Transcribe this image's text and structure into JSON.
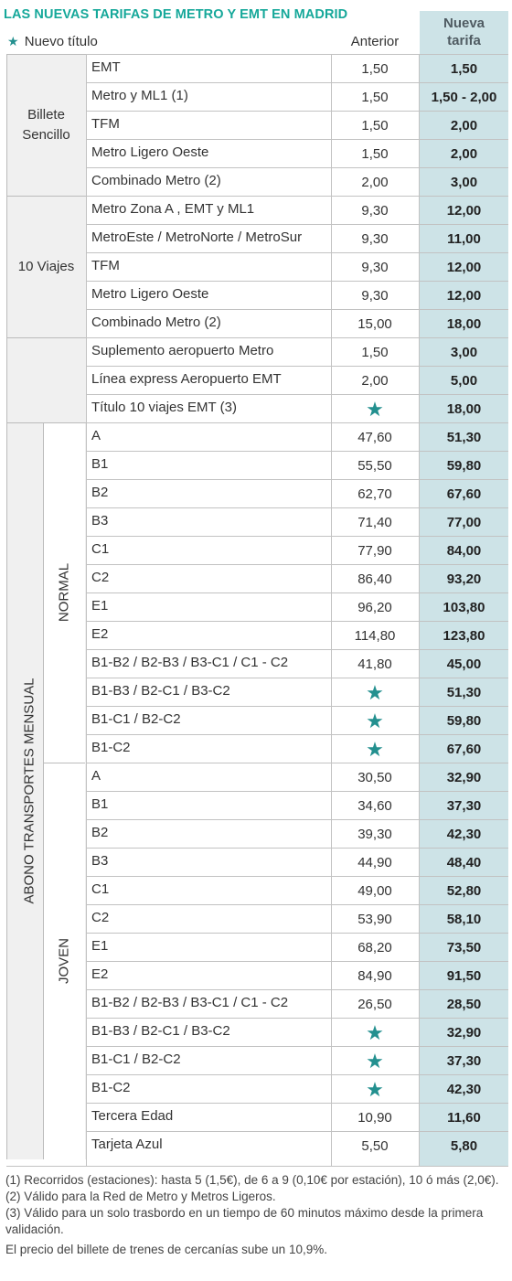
{
  "title": "LAS NUEVAS TARIFAS DE METRO Y EMT EN MADRID",
  "legend": {
    "symbol": "★",
    "label": "Nuevo título"
  },
  "headers": {
    "old": "Anterior",
    "new_line1": "Nueva",
    "new_line2": "tarifa"
  },
  "star_color": "#23908f",
  "title_color": "#16a89a",
  "highlight_color": "#cde3e7",
  "groups": [
    {
      "label_lines": [
        "Billete",
        "Sencillo"
      ],
      "rows": [
        {
          "name": "EMT",
          "old": "1,50",
          "new": "1,50"
        },
        {
          "name": "Metro  y ML1 (1)",
          "old": "1,50",
          "new": "1,50 - 2,00"
        },
        {
          "name": "TFM",
          "old": "1,50",
          "new": "2,00"
        },
        {
          "name": "Metro Ligero Oeste",
          "old": "1,50",
          "new": "2,00"
        },
        {
          "name": "Combinado Metro (2)",
          "old": "2,00",
          "new": "3,00"
        }
      ]
    },
    {
      "label_lines": [
        "10 Viajes"
      ],
      "rows": [
        {
          "name": "Metro Zona A , EMT y ML1",
          "old": "9,30",
          "new": "12,00"
        },
        {
          "name": "MetroEste / MetroNorte / MetroSur",
          "old": "9,30",
          "new": "11,00"
        },
        {
          "name": "TFM",
          "old": "9,30",
          "new": "12,00"
        },
        {
          "name": "Metro Ligero Oeste",
          "old": "9,30",
          "new": "12,00"
        },
        {
          "name": "Combinado Metro (2)",
          "old": "15,00",
          "new": "18,00"
        }
      ]
    },
    {
      "label_lines": [],
      "rows": [
        {
          "name": "Suplemento aeropuerto Metro",
          "old": "1,50",
          "new": "3,00"
        },
        {
          "name": "Línea express Aeropuerto EMT",
          "old": "2,00",
          "new": "5,00"
        },
        {
          "name": "Título 10 viajes EMT (3)",
          "old": "★",
          "new": "18,00"
        }
      ]
    },
    {
      "label_vertical": "ABONO TRANSPORTES MENSUAL",
      "subgroups": [
        {
          "label": "NORMAL",
          "rows": [
            {
              "name": "A",
              "old": "47,60",
              "new": "51,30"
            },
            {
              "name": "B1",
              "old": "55,50",
              "new": "59,80"
            },
            {
              "name": "B2",
              "old": "62,70",
              "new": "67,60"
            },
            {
              "name": "B3",
              "old": "71,40",
              "new": "77,00"
            },
            {
              "name": "C1",
              "old": "77,90",
              "new": "84,00"
            },
            {
              "name": "C2",
              "old": "86,40",
              "new": "93,20"
            },
            {
              "name": "E1",
              "old": "96,20",
              "new": "103,80"
            },
            {
              "name": "E2",
              "old": "114,80",
              "new": "123,80"
            },
            {
              "name": "B1-B2 / B2-B3 / B3-C1 / C1 - C2",
              "old": "41,80",
              "new": "45,00"
            },
            {
              "name": "B1-B3 / B2-C1 / B3-C2",
              "old": "★",
              "new": "51,30"
            },
            {
              "name": "B1-C1 / B2-C2",
              "old": "★",
              "new": "59,80"
            },
            {
              "name": "B1-C2",
              "old": "★",
              "new": "67,60"
            }
          ]
        },
        {
          "label": "JOVEN",
          "rows": [
            {
              "name": "A",
              "old": "30,50",
              "new": "32,90"
            },
            {
              "name": "B1",
              "old": "34,60",
              "new": "37,30"
            },
            {
              "name": "B2",
              "old": "39,30",
              "new": "42,30"
            },
            {
              "name": "B3",
              "old": "44,90",
              "new": "48,40"
            },
            {
              "name": "C1",
              "old": "49,00",
              "new": "52,80"
            },
            {
              "name": "C2",
              "old": "53,90",
              "new": "58,10"
            },
            {
              "name": "E1",
              "old": "68,20",
              "new": "73,50"
            },
            {
              "name": "E2",
              "old": "84,90",
              "new": "91,50"
            },
            {
              "name": "B1-B2 / B2-B3 / B3-C1 / C1 - C2",
              "old": "26,50",
              "new": "28,50"
            },
            {
              "name": "B1-B3 / B2-C1 / B3-C2",
              "old": "★",
              "new": "32,90"
            },
            {
              "name": "B1-C1 / B2-C2",
              "old": "★",
              "new": "37,30"
            },
            {
              "name": "B1-C2",
              "old": "★",
              "new": "42,30"
            },
            {
              "name": "Tercera Edad",
              "old": "10,90",
              "new": "11,60"
            },
            {
              "name": "Tarjeta Azul",
              "old": "5,50",
              "new": "5,80"
            }
          ]
        }
      ]
    }
  ],
  "notes": [
    "(1) Recorridos (estaciones): hasta 5 (1,5€), de 6  a 9 (0,10€ por estación), 10 ó más (2,0€).",
    "(2) Válido para la Red de Metro y Metros Ligeros.",
    "(3) Válido para un solo trasbordo en un tiempo de 60 minutos máximo desde la primera validación."
  ],
  "footer": "El precio del billete de trenes de cercanías sube un 10,9%."
}
